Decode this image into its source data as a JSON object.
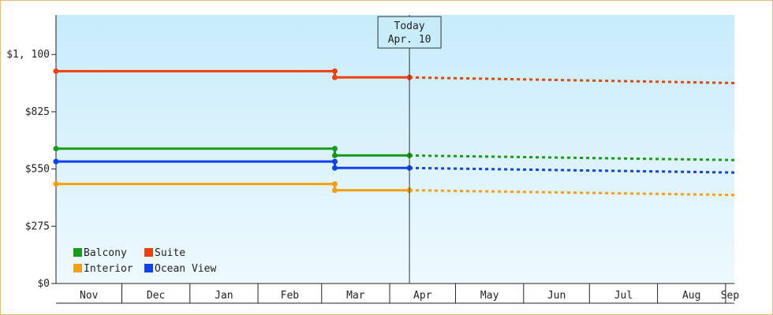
{
  "chart_data": {
    "type": "line",
    "title": "",
    "xlabel": "",
    "ylabel": "",
    "y_ticks": [
      "$0",
      "$275",
      "$550",
      "$825",
      "$1, 100"
    ],
    "y_tick_values": [
      0,
      275,
      550,
      825,
      1100
    ],
    "ylim": [
      0,
      1290
    ],
    "months": [
      "Nov",
      "Dec",
      "Jan",
      "Feb",
      "Mar",
      "Apr",
      "May",
      "Jun",
      "Jul",
      "Aug",
      "Sep"
    ],
    "month_starts": [
      "2023-11-01",
      "2023-12-01",
      "2024-01-01",
      "2024-02-01",
      "2024-03-01",
      "2024-04-01",
      "2024-05-01",
      "2024-06-01",
      "2024-07-01",
      "2024-08-01",
      "2024-09-01"
    ],
    "x_range": [
      "2023-11-01",
      "2024-09-05"
    ],
    "today": {
      "line1": "Today",
      "line2": "Apr. 10",
      "date": "2024-04-10"
    },
    "grid": false,
    "legend_position": "bottom-left",
    "series": [
      {
        "name": "Balcony",
        "color": "#1a9a1a",
        "history": [
          [
            "2023-11-01",
            648
          ],
          [
            "2024-03-07",
            648
          ],
          [
            "2024-03-07",
            615
          ],
          [
            "2024-04-10",
            615
          ]
        ],
        "forecast": [
          [
            "2024-04-10",
            615
          ],
          [
            "2024-09-05",
            593
          ]
        ]
      },
      {
        "name": "Suite",
        "color": "#f04010",
        "history": [
          [
            "2023-11-01",
            1020
          ],
          [
            "2024-03-07",
            1020
          ],
          [
            "2024-03-07",
            990
          ],
          [
            "2024-04-10",
            990
          ]
        ],
        "forecast": [
          [
            "2024-04-10",
            990
          ],
          [
            "2024-09-05",
            963
          ]
        ]
      },
      {
        "name": "Interior",
        "color": "#f4a010",
        "history": [
          [
            "2023-11-01",
            478
          ],
          [
            "2024-03-07",
            478
          ],
          [
            "2024-03-07",
            448
          ],
          [
            "2024-04-10",
            448
          ]
        ],
        "forecast": [
          [
            "2024-04-10",
            448
          ],
          [
            "2024-09-05",
            425
          ]
        ]
      },
      {
        "name": "Ocean View",
        "color": "#1040f0",
        "history": [
          [
            "2023-11-01",
            586
          ],
          [
            "2024-03-07",
            586
          ],
          [
            "2024-03-07",
            555
          ],
          [
            "2024-04-10",
            555
          ]
        ],
        "forecast": [
          [
            "2024-04-10",
            555
          ],
          [
            "2024-09-05",
            533
          ]
        ]
      }
    ]
  }
}
